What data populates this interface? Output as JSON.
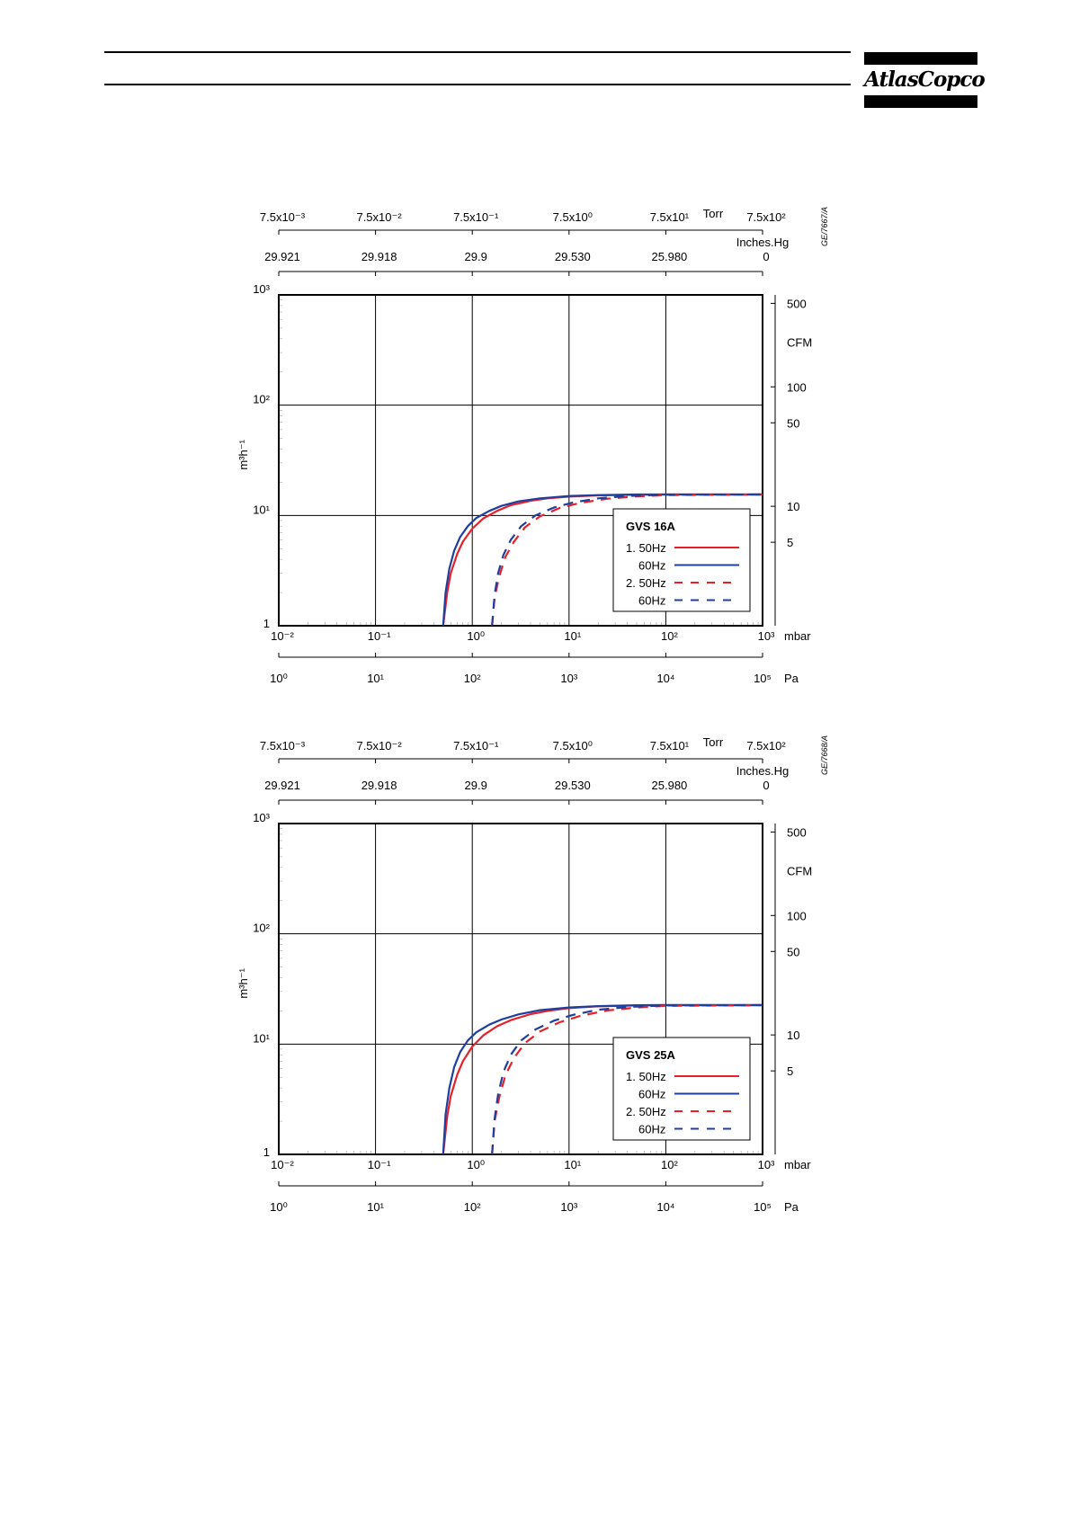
{
  "header": {
    "logo_text": "AtlasCopco"
  },
  "chart_data": [
    {
      "type": "line",
      "legend_title": "GVS 16A",
      "figure_id": "GE/7667/A",
      "x_scale": "log",
      "y_scale": "log",
      "xlim": [
        0.01,
        1000
      ],
      "ylim": [
        1,
        1000
      ],
      "grid": true,
      "legend_position": "bottom-right",
      "ylabel": "m³h⁻¹",
      "y_ticks": [
        "1",
        "10¹",
        "10²",
        "10³"
      ],
      "mbar_ticks": [
        "10⁻²",
        "10⁻¹",
        "10⁰",
        "10¹",
        "10²",
        "10³"
      ],
      "mbar_unit": "mbar",
      "pa_ticks": [
        "10⁰",
        "10¹",
        "10²",
        "10³",
        "10⁴",
        "10⁵"
      ],
      "pa_unit": "Pa",
      "torr_ticks": [
        "7.5x10⁻³",
        "7.5x10⁻²",
        "7.5x10⁻¹",
        "7.5x10⁰",
        "7.5x10¹",
        "7.5x10²"
      ],
      "torr_unit": "Torr",
      "inhg_ticks": [
        "29.921",
        "29.918",
        "29.9",
        "29.530",
        "25.980",
        "0"
      ],
      "inhg_unit": "Inches.Hg",
      "cfm_ticks": [
        "500",
        "100",
        "50",
        "10",
        "5"
      ],
      "cfm_values": [
        500,
        100,
        50,
        10,
        5
      ],
      "cfm_unit": "CFM",
      "series": [
        {
          "name": "1. 50Hz",
          "color": "#e8202a",
          "style": "solid",
          "x": [
            0.5,
            0.55,
            0.6,
            0.7,
            0.8,
            1.0,
            1.3,
            1.8,
            2.5,
            4,
            6,
            10,
            20,
            50,
            100,
            1000
          ],
          "y": [
            1,
            2.0,
            3.0,
            4.5,
            5.8,
            7.6,
            9.4,
            11.0,
            12.4,
            13.6,
            14.3,
            14.8,
            15.2,
            15.4,
            15.5,
            15.5
          ]
        },
        {
          "name": "60Hz",
          "color": "#1f3f9f",
          "style": "solid",
          "x": [
            0.5,
            0.53,
            0.58,
            0.65,
            0.75,
            0.9,
            1.1,
            1.5,
            2.0,
            3,
            5,
            10,
            20,
            50,
            100,
            1000
          ],
          "y": [
            1,
            2.0,
            3.3,
            4.8,
            6.4,
            8.0,
            9.5,
            11.0,
            12.2,
            13.4,
            14.3,
            15.0,
            15.3,
            15.5,
            15.5,
            15.5
          ]
        },
        {
          "name": "2. 50Hz",
          "color": "#e8202a",
          "style": "dashed",
          "x": [
            1.6,
            1.7,
            1.9,
            2.2,
            2.7,
            3.5,
            5,
            8,
            13,
            25,
            50,
            100,
            1000
          ],
          "y": [
            1,
            1.8,
            2.8,
            4.2,
            5.8,
            7.8,
            9.8,
            11.7,
            13.0,
            14.2,
            14.9,
            15.3,
            15.5
          ]
        },
        {
          "name": "60Hz",
          "color": "#1f3f9f",
          "style": "dashed",
          "x": [
            1.6,
            1.7,
            1.85,
            2.1,
            2.5,
            3.2,
            4.5,
            7,
            11,
            20,
            40,
            100,
            1000
          ],
          "y": [
            1,
            1.9,
            3.0,
            4.4,
            6.0,
            8.0,
            10.0,
            11.8,
            13.1,
            14.3,
            15.0,
            15.4,
            15.5
          ]
        }
      ]
    },
    {
      "type": "line",
      "legend_title": "GVS 25A",
      "figure_id": "GE/7668/A",
      "x_scale": "log",
      "y_scale": "log",
      "xlim": [
        0.01,
        1000
      ],
      "ylim": [
        1,
        1000
      ],
      "grid": true,
      "legend_position": "bottom-right",
      "ylabel": "m³h⁻¹",
      "y_ticks": [
        "1",
        "10¹",
        "10²",
        "10³"
      ],
      "mbar_ticks": [
        "10⁻²",
        "10⁻¹",
        "10⁰",
        "10¹",
        "10²",
        "10³"
      ],
      "mbar_unit": "mbar",
      "pa_ticks": [
        "10⁰",
        "10¹",
        "10²",
        "10³",
        "10⁴",
        "10⁵"
      ],
      "pa_unit": "Pa",
      "torr_ticks": [
        "7.5x10⁻³",
        "7.5x10⁻²",
        "7.5x10⁻¹",
        "7.5x10⁰",
        "7.5x10¹",
        "7.5x10²"
      ],
      "torr_unit": "Torr",
      "inhg_ticks": [
        "29.921",
        "29.918",
        "29.9",
        "29.530",
        "25.980",
        "0"
      ],
      "inhg_unit": "Inches.Hg",
      "cfm_ticks": [
        "500",
        "100",
        "50",
        "10",
        "5"
      ],
      "cfm_values": [
        500,
        100,
        50,
        10,
        5
      ],
      "cfm_unit": "CFM",
      "series": [
        {
          "name": "1. 50Hz",
          "color": "#e8202a",
          "style": "solid",
          "x": [
            0.5,
            0.55,
            0.6,
            0.7,
            0.8,
            1.0,
            1.3,
            1.8,
            2.5,
            4,
            6,
            10,
            20,
            50,
            100,
            1000
          ],
          "y": [
            1,
            2.2,
            3.4,
            5.3,
            7.0,
            9.5,
            12.0,
            14.5,
            16.5,
            18.7,
            20.0,
            21.2,
            22.0,
            22.4,
            22.5,
            22.5
          ]
        },
        {
          "name": "60Hz",
          "color": "#1f3f9f",
          "style": "solid",
          "x": [
            0.5,
            0.53,
            0.58,
            0.65,
            0.75,
            0.9,
            1.1,
            1.5,
            2.0,
            3,
            5,
            10,
            20,
            50,
            100,
            1000
          ],
          "y": [
            1,
            2.3,
            4.0,
            6.2,
            8.5,
            10.8,
            12.8,
            15.0,
            16.7,
            18.6,
            20.3,
            21.5,
            22.1,
            22.5,
            22.6,
            22.6
          ]
        },
        {
          "name": "2. 50Hz",
          "color": "#e8202a",
          "style": "dashed",
          "x": [
            1.6,
            1.7,
            1.9,
            2.2,
            2.7,
            3.5,
            5,
            8,
            13,
            25,
            50,
            100,
            1000
          ],
          "y": [
            1,
            2.0,
            3.3,
            5.2,
            7.5,
            10.2,
            13.0,
            15.8,
            18.0,
            20.2,
            21.5,
            22.2,
            22.5
          ]
        },
        {
          "name": "60Hz",
          "color": "#1f3f9f",
          "style": "dashed",
          "x": [
            1.6,
            1.7,
            1.85,
            2.1,
            2.5,
            3.2,
            4.5,
            7,
            11,
            20,
            40,
            100,
            1000
          ],
          "y": [
            1,
            2.1,
            3.5,
            5.6,
            8.0,
            10.8,
            13.6,
            16.3,
            18.4,
            20.5,
            21.7,
            22.4,
            22.6
          ]
        }
      ]
    }
  ]
}
